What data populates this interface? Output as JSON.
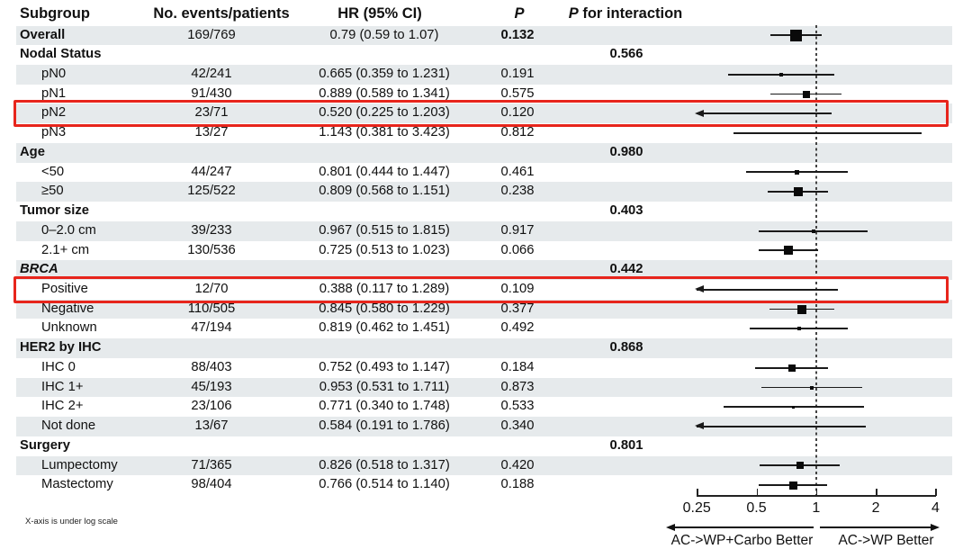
{
  "header": {
    "subgroup": "Subgroup",
    "events": "No. events/patients",
    "hr": "HR (95% CI)",
    "p": "P",
    "p_interaction_p": "P",
    "p_interaction_rest": "for interaction"
  },
  "footnote": "X-axis is under log scale",
  "axis": {
    "ticks": [
      "0.25",
      "0.5",
      "1",
      "2",
      "4"
    ],
    "tick_values": [
      0.25,
      0.5,
      1,
      2,
      4
    ],
    "left_label": "AC->WP+Carbo Better",
    "right_label": "AC->WP Better"
  },
  "colors": {
    "stripe": "#e6eaec",
    "highlight_red": "#e7251c",
    "ink": "#111111"
  },
  "chart_data": {
    "type": "forest",
    "x_scale": "log",
    "x_range": [
      0.25,
      4
    ],
    "reference_line": 1,
    "clip_note": "CIs below 0.25 drawn as left arrows",
    "rows": [
      {
        "label": "Overall",
        "level": "top",
        "events": "169/769",
        "hr_text": "0.79 (0.59 to 1.07)",
        "p": "0.132",
        "p_bold": true,
        "hr": 0.79,
        "lo": 0.59,
        "hi": 1.07,
        "marker": 13
      },
      {
        "label": "Nodal Status",
        "level": "group",
        "p_int": "0.566"
      },
      {
        "label": "pN0",
        "level": "sub",
        "events": "42/241",
        "hr_text": "0.665 (0.359 to 1.231)",
        "p": "0.191",
        "hr": 0.665,
        "lo": 0.359,
        "hi": 1.231,
        "marker": 4
      },
      {
        "label": "pN1",
        "level": "sub",
        "events": "91/430",
        "hr_text": "0.889 (0.589 to 1.341)",
        "p": "0.575",
        "hr": 0.889,
        "lo": 0.589,
        "hi": 1.341,
        "marker": 8
      },
      {
        "label": "pN2",
        "level": "sub",
        "events": "23/71",
        "hr_text": "0.520 (0.225 to 1.203)",
        "p": "0.120",
        "hr": 0.52,
        "lo": 0.225,
        "hi": 1.203,
        "marker": 0,
        "highlight": true
      },
      {
        "label": "pN3",
        "level": "sub",
        "events": "13/27",
        "hr_text": "1.143 (0.381 to 3.423)",
        "p": "0.812",
        "hr": 1.143,
        "lo": 0.381,
        "hi": 3.423,
        "marker": 0
      },
      {
        "label": "Age",
        "level": "group",
        "p_int": "0.980"
      },
      {
        "label": "<50",
        "level": "sub",
        "events": "44/247",
        "hr_text": "0.801 (0.444 to 1.447)",
        "p": "0.461",
        "hr": 0.801,
        "lo": 0.444,
        "hi": 1.447,
        "marker": 5
      },
      {
        "label": "≥50",
        "level": "sub",
        "events": "125/522",
        "hr_text": "0.809 (0.568 to 1.151)",
        "p": "0.238",
        "hr": 0.809,
        "lo": 0.568,
        "hi": 1.151,
        "marker": 10
      },
      {
        "label": "Tumor size",
        "level": "group",
        "p_int": "0.403"
      },
      {
        "label": "0–2.0 cm",
        "level": "sub",
        "events": "39/233",
        "hr_text": "0.967 (0.515 to 1.815)",
        "p": "0.917",
        "hr": 0.967,
        "lo": 0.515,
        "hi": 1.815,
        "marker": 4
      },
      {
        "label": "2.1+ cm",
        "level": "sub",
        "events": "130/536",
        "hr_text": "0.725 (0.513 to 1.023)",
        "p": "0.066",
        "hr": 0.725,
        "lo": 0.513,
        "hi": 1.023,
        "marker": 10
      },
      {
        "label": "BRCA",
        "level": "group",
        "italic": true,
        "p_int": "0.442"
      },
      {
        "label": "Positive",
        "level": "sub",
        "events": "12/70",
        "hr_text": "0.388 (0.117 to 1.289)",
        "p": "0.109",
        "hr": 0.388,
        "lo": 0.117,
        "hi": 1.289,
        "marker": 0,
        "highlight": true
      },
      {
        "label": "Negative",
        "level": "sub",
        "events": "110/505",
        "hr_text": "0.845 (0.580 to 1.229)",
        "p": "0.377",
        "hr": 0.845,
        "lo": 0.58,
        "hi": 1.229,
        "marker": 10
      },
      {
        "label": "Unknown",
        "level": "sub",
        "events": "47/194",
        "hr_text": "0.819 (0.462 to 1.451)",
        "p": "0.492",
        "hr": 0.819,
        "lo": 0.462,
        "hi": 1.451,
        "marker": 4
      },
      {
        "label": "HER2 by IHC",
        "level": "group",
        "p_int": "0.868"
      },
      {
        "label": "IHC 0",
        "level": "sub",
        "events": "88/403",
        "hr_text": "0.752 (0.493 to 1.147)",
        "p": "0.184",
        "hr": 0.752,
        "lo": 0.493,
        "hi": 1.147,
        "marker": 8
      },
      {
        "label": "IHC 1+",
        "level": "sub",
        "events": "45/193",
        "hr_text": "0.953 (0.531 to 1.711)",
        "p": "0.873",
        "hr": 0.953,
        "lo": 0.531,
        "hi": 1.711,
        "marker": 4
      },
      {
        "label": "IHC 2+",
        "level": "sub",
        "events": "23/106",
        "hr_text": "0.771 (0.340 to 1.748)",
        "p": "0.533",
        "hr": 0.771,
        "lo": 0.34,
        "hi": 1.748,
        "marker": 3
      },
      {
        "label": "Not done",
        "level": "sub",
        "events": "13/67",
        "hr_text": "0.584 (0.191 to 1.786)",
        "p": "0.340",
        "hr": 0.584,
        "lo": 0.191,
        "hi": 1.786,
        "marker": 0
      },
      {
        "label": "Surgery",
        "level": "group",
        "p_int": "0.801"
      },
      {
        "label": "Lumpectomy",
        "level": "sub",
        "events": "71/365",
        "hr_text": "0.826 (0.518 to 1.317)",
        "p": "0.420",
        "hr": 0.826,
        "lo": 0.518,
        "hi": 1.317,
        "marker": 8
      },
      {
        "label": "Mastectomy",
        "level": "sub",
        "events": "98/404",
        "hr_text": "0.766 (0.514 to 1.140)",
        "p": "0.188",
        "hr": 0.766,
        "lo": 0.514,
        "hi": 1.14,
        "marker": 9
      }
    ]
  }
}
